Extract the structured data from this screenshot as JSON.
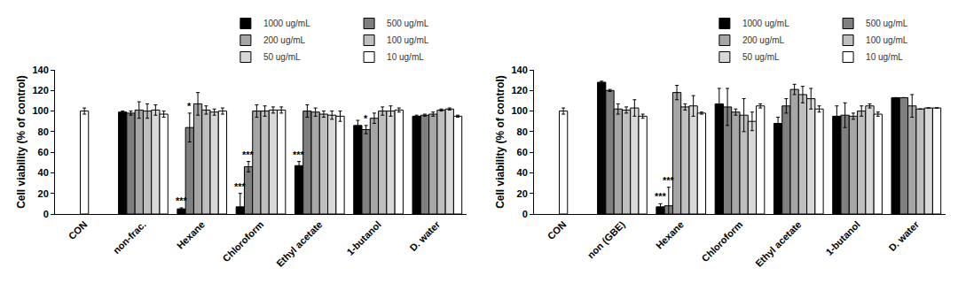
{
  "chart_data": [
    {
      "type": "bar",
      "ylabel": "Cell viability (% of control)",
      "categories": [
        "CON",
        "non-frac.",
        "Hexane",
        "Chloroform",
        "Ethyl acetate",
        "1-butanol",
        "D. water"
      ],
      "series": [
        {
          "color": "#ffffff",
          "values": [
            100,
            null,
            null,
            null,
            null,
            null,
            null
          ],
          "errors": [
            3,
            null,
            null,
            null,
            null,
            null,
            null
          ]
        },
        {
          "name": "1000 ug/mL",
          "color": "#000000",
          "values": [
            null,
            99,
            5,
            7,
            47,
            86,
            95
          ],
          "errors": [
            null,
            1,
            1,
            13,
            4,
            5,
            1
          ]
        },
        {
          "name": "500 ug/mL",
          "color": "#7f7f7f",
          "values": [
            null,
            98,
            84,
            46,
            100,
            82,
            96
          ],
          "errors": [
            null,
            2,
            14,
            5,
            6,
            4,
            1
          ]
        },
        {
          "name": "200 ug/mL",
          "color": "#a6a6a6",
          "values": [
            null,
            101,
            107,
            100,
            99,
            93,
            97
          ],
          "errors": [
            null,
            8,
            11,
            6,
            4,
            5,
            2
          ]
        },
        {
          "name": "100 ug/mL",
          "color": "#bfbfbf",
          "values": [
            null,
            100,
            101,
            100,
            97,
            100,
            101
          ],
          "errors": [
            null,
            7,
            4,
            5,
            3,
            4,
            1
          ]
        },
        {
          "name": "50 ug/mL",
          "color": "#d9d9d9",
          "values": [
            null,
            101,
            99,
            101,
            96,
            100,
            102
          ],
          "errors": [
            null,
            5,
            3,
            3,
            4,
            5,
            1
          ]
        },
        {
          "name": "10 ug/mL",
          "color": "#ffffff",
          "values": [
            null,
            97,
            100,
            101,
            95,
            101,
            95
          ],
          "errors": [
            null,
            3,
            3,
            3,
            5,
            2,
            1
          ]
        }
      ],
      "ylim": [
        0,
        140
      ],
      "yticks": [
        0,
        20,
        40,
        60,
        80,
        100,
        120,
        140
      ],
      "grid": false,
      "legend": "upper right",
      "annotations": [
        {
          "text": "***",
          "category": "Hexane",
          "series": "1000 ug/mL"
        },
        {
          "text": "*",
          "category": "Hexane",
          "series": "500 ug/mL"
        },
        {
          "text": "***",
          "category": "Chloroform",
          "series": "1000 ug/mL"
        },
        {
          "text": "***",
          "category": "Chloroform",
          "series": "500 ug/mL"
        },
        {
          "text": "***",
          "category": "Ethyl acetate",
          "series": "1000 ug/mL"
        },
        {
          "text": "*",
          "category": "1-butanol",
          "series": "500 ug/mL"
        }
      ]
    },
    {
      "type": "bar",
      "ylabel": "Cell viability (% of control)",
      "categories": [
        "CON",
        "non (GBE)",
        "Hexane",
        "Chloroform",
        "Ethyl acetate",
        "1-butanol",
        "D. water"
      ],
      "series": [
        {
          "color": "#ffffff",
          "values": [
            100,
            null,
            null,
            null,
            null,
            null,
            null
          ],
          "errors": [
            3,
            null,
            null,
            null,
            null,
            null,
            null
          ]
        },
        {
          "name": "1000 ug/mL",
          "color": "#000000",
          "values": [
            null,
            128,
            7,
            107,
            88,
            95,
            113
          ],
          "errors": [
            null,
            1,
            3,
            15,
            6,
            10,
            0
          ]
        },
        {
          "name": "500 ug/mL",
          "color": "#7f7f7f",
          "values": [
            null,
            120,
            8,
            104,
            105,
            96,
            113
          ],
          "errors": [
            null,
            1,
            18,
            18,
            7,
            12,
            0
          ]
        },
        {
          "name": "200 ug/mL",
          "color": "#a6a6a6",
          "values": [
            null,
            102,
            118,
            99,
            121,
            95,
            105
          ],
          "errors": [
            null,
            5,
            7,
            3,
            5,
            3,
            11
          ]
        },
        {
          "name": "100 ug/mL",
          "color": "#bfbfbf",
          "values": [
            null,
            101,
            104,
            96,
            116,
            100,
            102
          ],
          "errors": [
            null,
            3,
            3,
            16,
            8,
            5,
            0
          ]
        },
        {
          "name": "50 ug/mL",
          "color": "#d9d9d9",
          "values": [
            null,
            103,
            105,
            90,
            112,
            105,
            103
          ],
          "errors": [
            null,
            8,
            10,
            9,
            10,
            2,
            0
          ]
        },
        {
          "name": "10 ug/mL",
          "color": "#ffffff",
          "values": [
            null,
            95,
            98,
            105,
            102,
            97,
            103
          ],
          "errors": [
            null,
            2,
            1,
            2,
            3,
            2,
            0
          ]
        }
      ],
      "ylim": [
        0,
        140
      ],
      "yticks": [
        0,
        20,
        40,
        60,
        80,
        100,
        120,
        140
      ],
      "grid": false,
      "legend": "upper right",
      "annotations": [
        {
          "text": "***",
          "category": "Hexane",
          "series": "1000 ug/mL"
        },
        {
          "text": "***",
          "category": "Hexane",
          "series": "500 ug/mL"
        }
      ]
    }
  ]
}
